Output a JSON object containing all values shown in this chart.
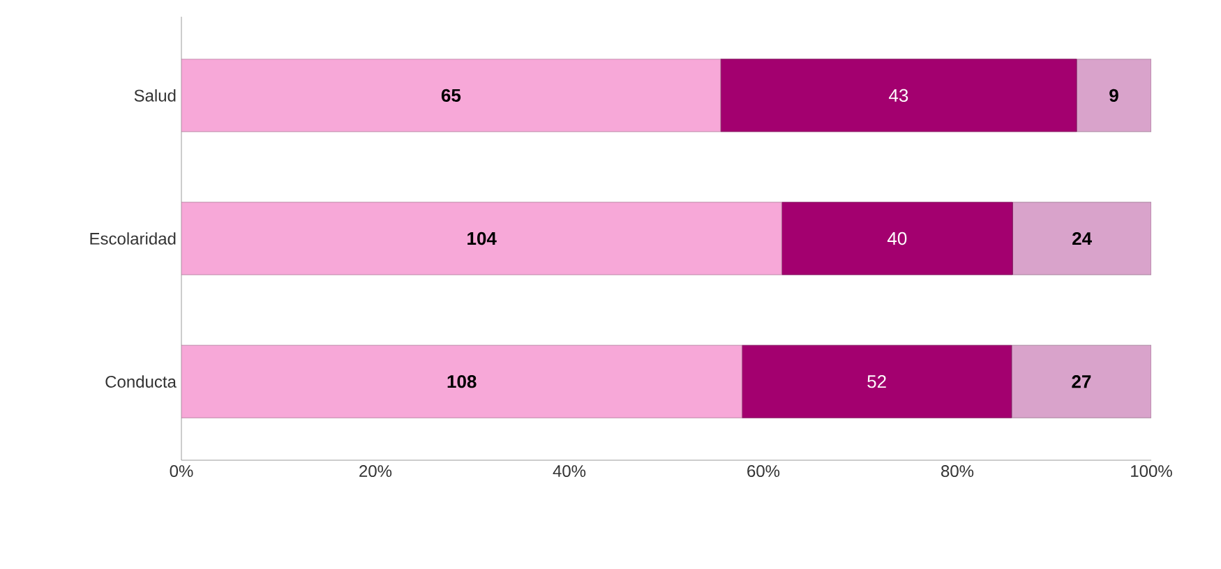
{
  "chart_data": {
    "type": "bar",
    "orientation": "horizontal",
    "stacked": true,
    "categories": [
      "Salud",
      "Escolaridad",
      "Conducta"
    ],
    "series": [
      {
        "color": "#f7a8d8",
        "values": [
          55.6,
          61.9,
          57.8
        ]
      },
      {
        "color": "#a3006f",
        "values": [
          36.7,
          23.8,
          27.8
        ]
      },
      {
        "color": "#d9a3cb",
        "values": [
          7.7,
          14.3,
          14.4
        ]
      }
    ],
    "xlim": [
      0,
      100
    ],
    "xticks": [
      {
        "value": 0,
        "label": "0%"
      },
      {
        "value": 20,
        "label": "20%"
      },
      {
        "value": 40,
        "label": "40%"
      },
      {
        "value": 60,
        "label": "60%"
      },
      {
        "value": 80,
        "label": "80%"
      },
      {
        "value": 100,
        "label": "100%"
      }
    ],
    "annotations": [
      "65",
      "43",
      "9",
      "104",
      "40",
      "24",
      "108",
      "52",
      "27"
    ]
  }
}
